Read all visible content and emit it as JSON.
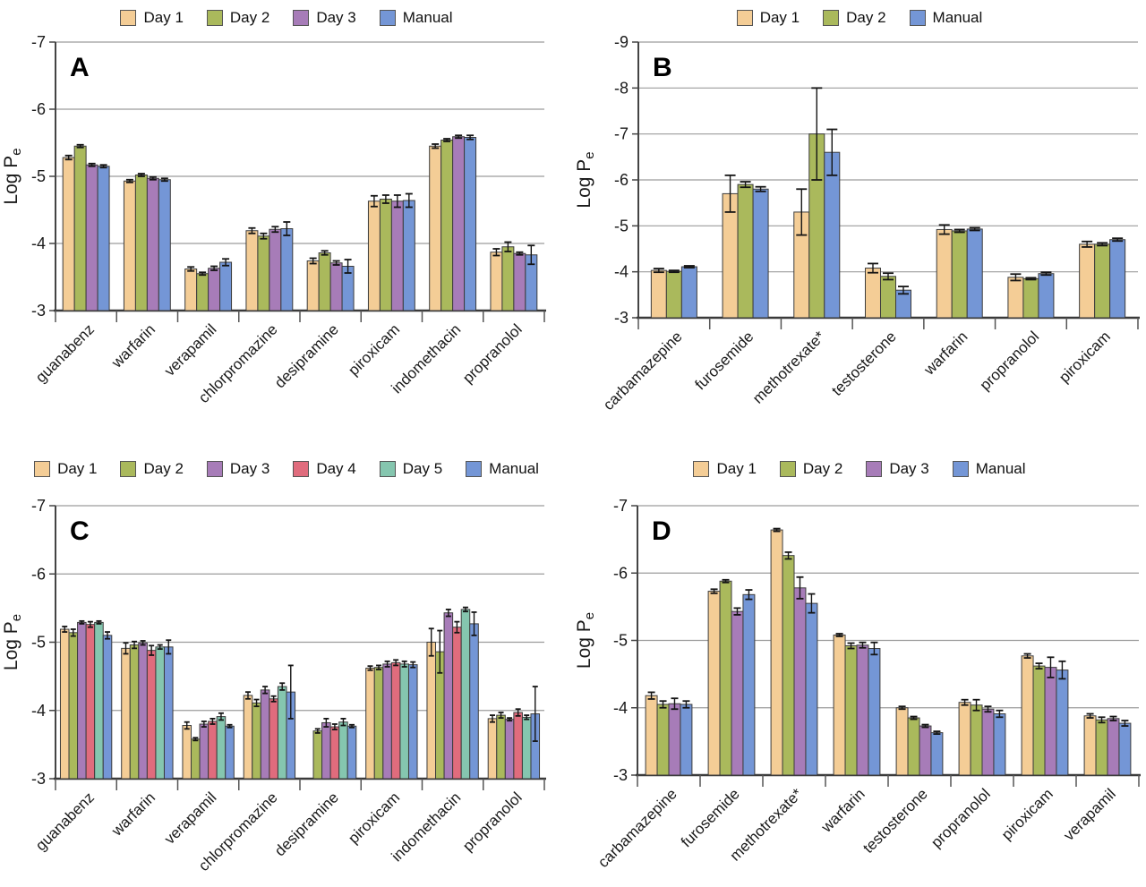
{
  "chart_data": [
    {
      "panel": "A",
      "type": "bar",
      "ylabel": "Log Pe",
      "ylim": [
        -3,
        -7
      ],
      "yticks": [
        -7,
        -6,
        -5,
        -4,
        -3
      ],
      "grid": true,
      "legend_position": "top",
      "categories": [
        "guanabenz",
        "warfarin",
        "verapamil",
        "chlorpromazine",
        "desipramine",
        "piroxicam",
        "indomethacin",
        "propranolol"
      ],
      "series": [
        {
          "name": "Day 1",
          "color": "#F4CD96",
          "values": [
            -5.28,
            -4.93,
            -3.62,
            -4.19,
            -3.74,
            -4.63,
            -5.45,
            -3.87
          ],
          "errors": [
            0.03,
            0.02,
            0.03,
            0.04,
            0.04,
            0.08,
            0.03,
            0.05
          ]
        },
        {
          "name": "Day 2",
          "color": "#AAB95C",
          "values": [
            -5.45,
            -5.02,
            -3.55,
            -4.11,
            -3.86,
            -4.66,
            -5.54,
            -3.95
          ],
          "errors": [
            0.02,
            0.02,
            0.02,
            0.04,
            0.03,
            0.06,
            0.02,
            0.07
          ]
        },
        {
          "name": "Day 3",
          "color": "#A77CB8",
          "values": [
            -5.17,
            -4.97,
            -3.63,
            -4.21,
            -3.71,
            -4.63,
            -5.59,
            -3.85
          ],
          "errors": [
            0.02,
            0.02,
            0.03,
            0.04,
            0.03,
            0.09,
            0.02,
            0.02
          ]
        },
        {
          "name": "Manual",
          "color": "#7496D6",
          "values": [
            -5.15,
            -4.95,
            -3.72,
            -4.22,
            -3.66,
            -4.64,
            -5.58,
            -3.83
          ],
          "errors": [
            0.02,
            0.02,
            0.05,
            0.1,
            0.1,
            0.1,
            0.03,
            0.14
          ]
        }
      ]
    },
    {
      "panel": "B",
      "type": "bar",
      "ylabel": "Log Pe",
      "ylim": [
        -3,
        -9
      ],
      "yticks": [
        -9,
        -8,
        -7,
        -6,
        -5,
        -4,
        -3
      ],
      "grid": true,
      "legend_position": "top",
      "categories": [
        "carbamazepine",
        "furosemide",
        "methotrexate*",
        "testosterone",
        "warfarin",
        "propranolol",
        "piroxicam"
      ],
      "series": [
        {
          "name": "Day 1",
          "color": "#F4CD96",
          "values": [
            -4.03,
            -5.7,
            -5.3,
            -4.08,
            -4.92,
            -3.88,
            -4.6
          ],
          "errors": [
            0.04,
            0.4,
            0.5,
            0.1,
            0.1,
            0.07,
            0.06
          ]
        },
        {
          "name": "Day 2",
          "color": "#AAB95C",
          "values": [
            -4.01,
            -5.9,
            -7.0,
            -3.9,
            -4.89,
            -3.85,
            -4.6
          ],
          "errors": [
            0.02,
            0.06,
            1.0,
            0.07,
            0.03,
            0.02,
            0.03
          ]
        },
        {
          "name": "Manual",
          "color": "#7496D6",
          "values": [
            -4.11,
            -5.8,
            -6.6,
            -3.6,
            -4.93,
            -3.96,
            -4.7
          ],
          "errors": [
            0.02,
            0.05,
            0.5,
            0.08,
            0.03,
            0.03,
            0.03
          ]
        }
      ]
    },
    {
      "panel": "C",
      "type": "bar",
      "ylabel": "Log Pe",
      "ylim": [
        -3,
        -7
      ],
      "yticks": [
        -7,
        -6,
        -5,
        -4,
        -3
      ],
      "grid": true,
      "legend_position": "top",
      "categories": [
        "guanabenz",
        "warfarin",
        "verapamil",
        "chlorpromazine",
        "desipramine",
        "piroxicam",
        "indomethacin",
        "propranolol"
      ],
      "series": [
        {
          "name": "Day 1",
          "color": "#F4CD96",
          "values": [
            -5.19,
            -4.91,
            -3.78,
            -4.22,
            null,
            -4.62,
            -5.0,
            -3.88
          ],
          "errors": [
            0.04,
            0.08,
            0.05,
            0.05,
            null,
            0.03,
            0.2,
            0.05
          ]
        },
        {
          "name": "Day 2",
          "color": "#AAB95C",
          "values": [
            -5.14,
            -4.96,
            -3.58,
            -4.11,
            -3.7,
            -4.63,
            -4.86,
            -3.93
          ],
          "errors": [
            0.05,
            0.05,
            0.02,
            0.05,
            0.03,
            0.03,
            0.31,
            0.04
          ]
        },
        {
          "name": "Day 3",
          "color": "#A77CB8",
          "values": [
            -5.29,
            -4.99,
            -3.8,
            -4.3,
            -3.82,
            -4.68,
            -5.43,
            -3.87
          ],
          "errors": [
            0.02,
            0.03,
            0.04,
            0.05,
            0.06,
            0.04,
            0.05,
            0.02
          ]
        },
        {
          "name": "Day 4",
          "color": "#E06C7D",
          "values": [
            -5.26,
            -4.88,
            -3.84,
            -4.17,
            -3.76,
            -4.7,
            -5.22,
            -3.97
          ],
          "errors": [
            0.04,
            0.07,
            0.04,
            0.04,
            0.04,
            0.04,
            0.08,
            0.05
          ]
        },
        {
          "name": "Day 5",
          "color": "#85C6AF",
          "values": [
            -5.29,
            -4.93,
            -3.91,
            -4.35,
            -3.83,
            -4.68,
            -5.48,
            -3.9
          ],
          "errors": [
            0.02,
            0.03,
            0.05,
            0.05,
            0.05,
            0.04,
            0.03,
            0.03
          ]
        },
        {
          "name": "Manual",
          "color": "#7496D6",
          "values": [
            -5.1,
            -4.93,
            -3.77,
            -4.27,
            -3.77,
            -4.67,
            -5.27,
            -3.95
          ],
          "errors": [
            0.05,
            0.1,
            0.02,
            0.39,
            0.02,
            0.04,
            0.17,
            0.4
          ]
        }
      ]
    },
    {
      "panel": "D",
      "type": "bar",
      "ylabel": "Log Pe",
      "ylim": [
        -3,
        -7
      ],
      "yticks": [
        -7,
        -6,
        -5,
        -4,
        -3
      ],
      "grid": true,
      "legend_position": "top",
      "categories": [
        "carbamazepine",
        "furosemide",
        "methotrexate*",
        "warfarin",
        "testosterone",
        "propranolol",
        "piroxicam",
        "verapamil"
      ],
      "series": [
        {
          "name": "Day 1",
          "color": "#F4CD96",
          "values": [
            -4.18,
            -5.73,
            -6.64,
            -5.08,
            -4.0,
            -4.08,
            -4.77,
            -3.88
          ],
          "errors": [
            0.05,
            0.03,
            0.02,
            0.02,
            0.02,
            0.04,
            0.03,
            0.03
          ]
        },
        {
          "name": "Day 2",
          "color": "#AAB95C",
          "values": [
            -4.05,
            -5.88,
            -6.26,
            -4.92,
            -3.85,
            -4.04,
            -4.62,
            -3.82
          ],
          "errors": [
            0.05,
            0.02,
            0.05,
            0.04,
            0.02,
            0.08,
            0.04,
            0.04
          ]
        },
        {
          "name": "Day 3",
          "color": "#A77CB8",
          "values": [
            -4.06,
            -5.43,
            -5.78,
            -4.93,
            -3.73,
            -3.98,
            -4.6,
            -3.84
          ],
          "errors": [
            0.08,
            0.05,
            0.16,
            0.04,
            0.02,
            0.04,
            0.15,
            0.03
          ]
        },
        {
          "name": "Manual",
          "color": "#7496D6",
          "values": [
            -4.05,
            -5.68,
            -5.55,
            -4.88,
            -3.63,
            -3.91,
            -4.56,
            -3.77
          ],
          "errors": [
            0.05,
            0.07,
            0.14,
            0.09,
            0.02,
            0.05,
            0.13,
            0.04
          ]
        }
      ]
    }
  ]
}
